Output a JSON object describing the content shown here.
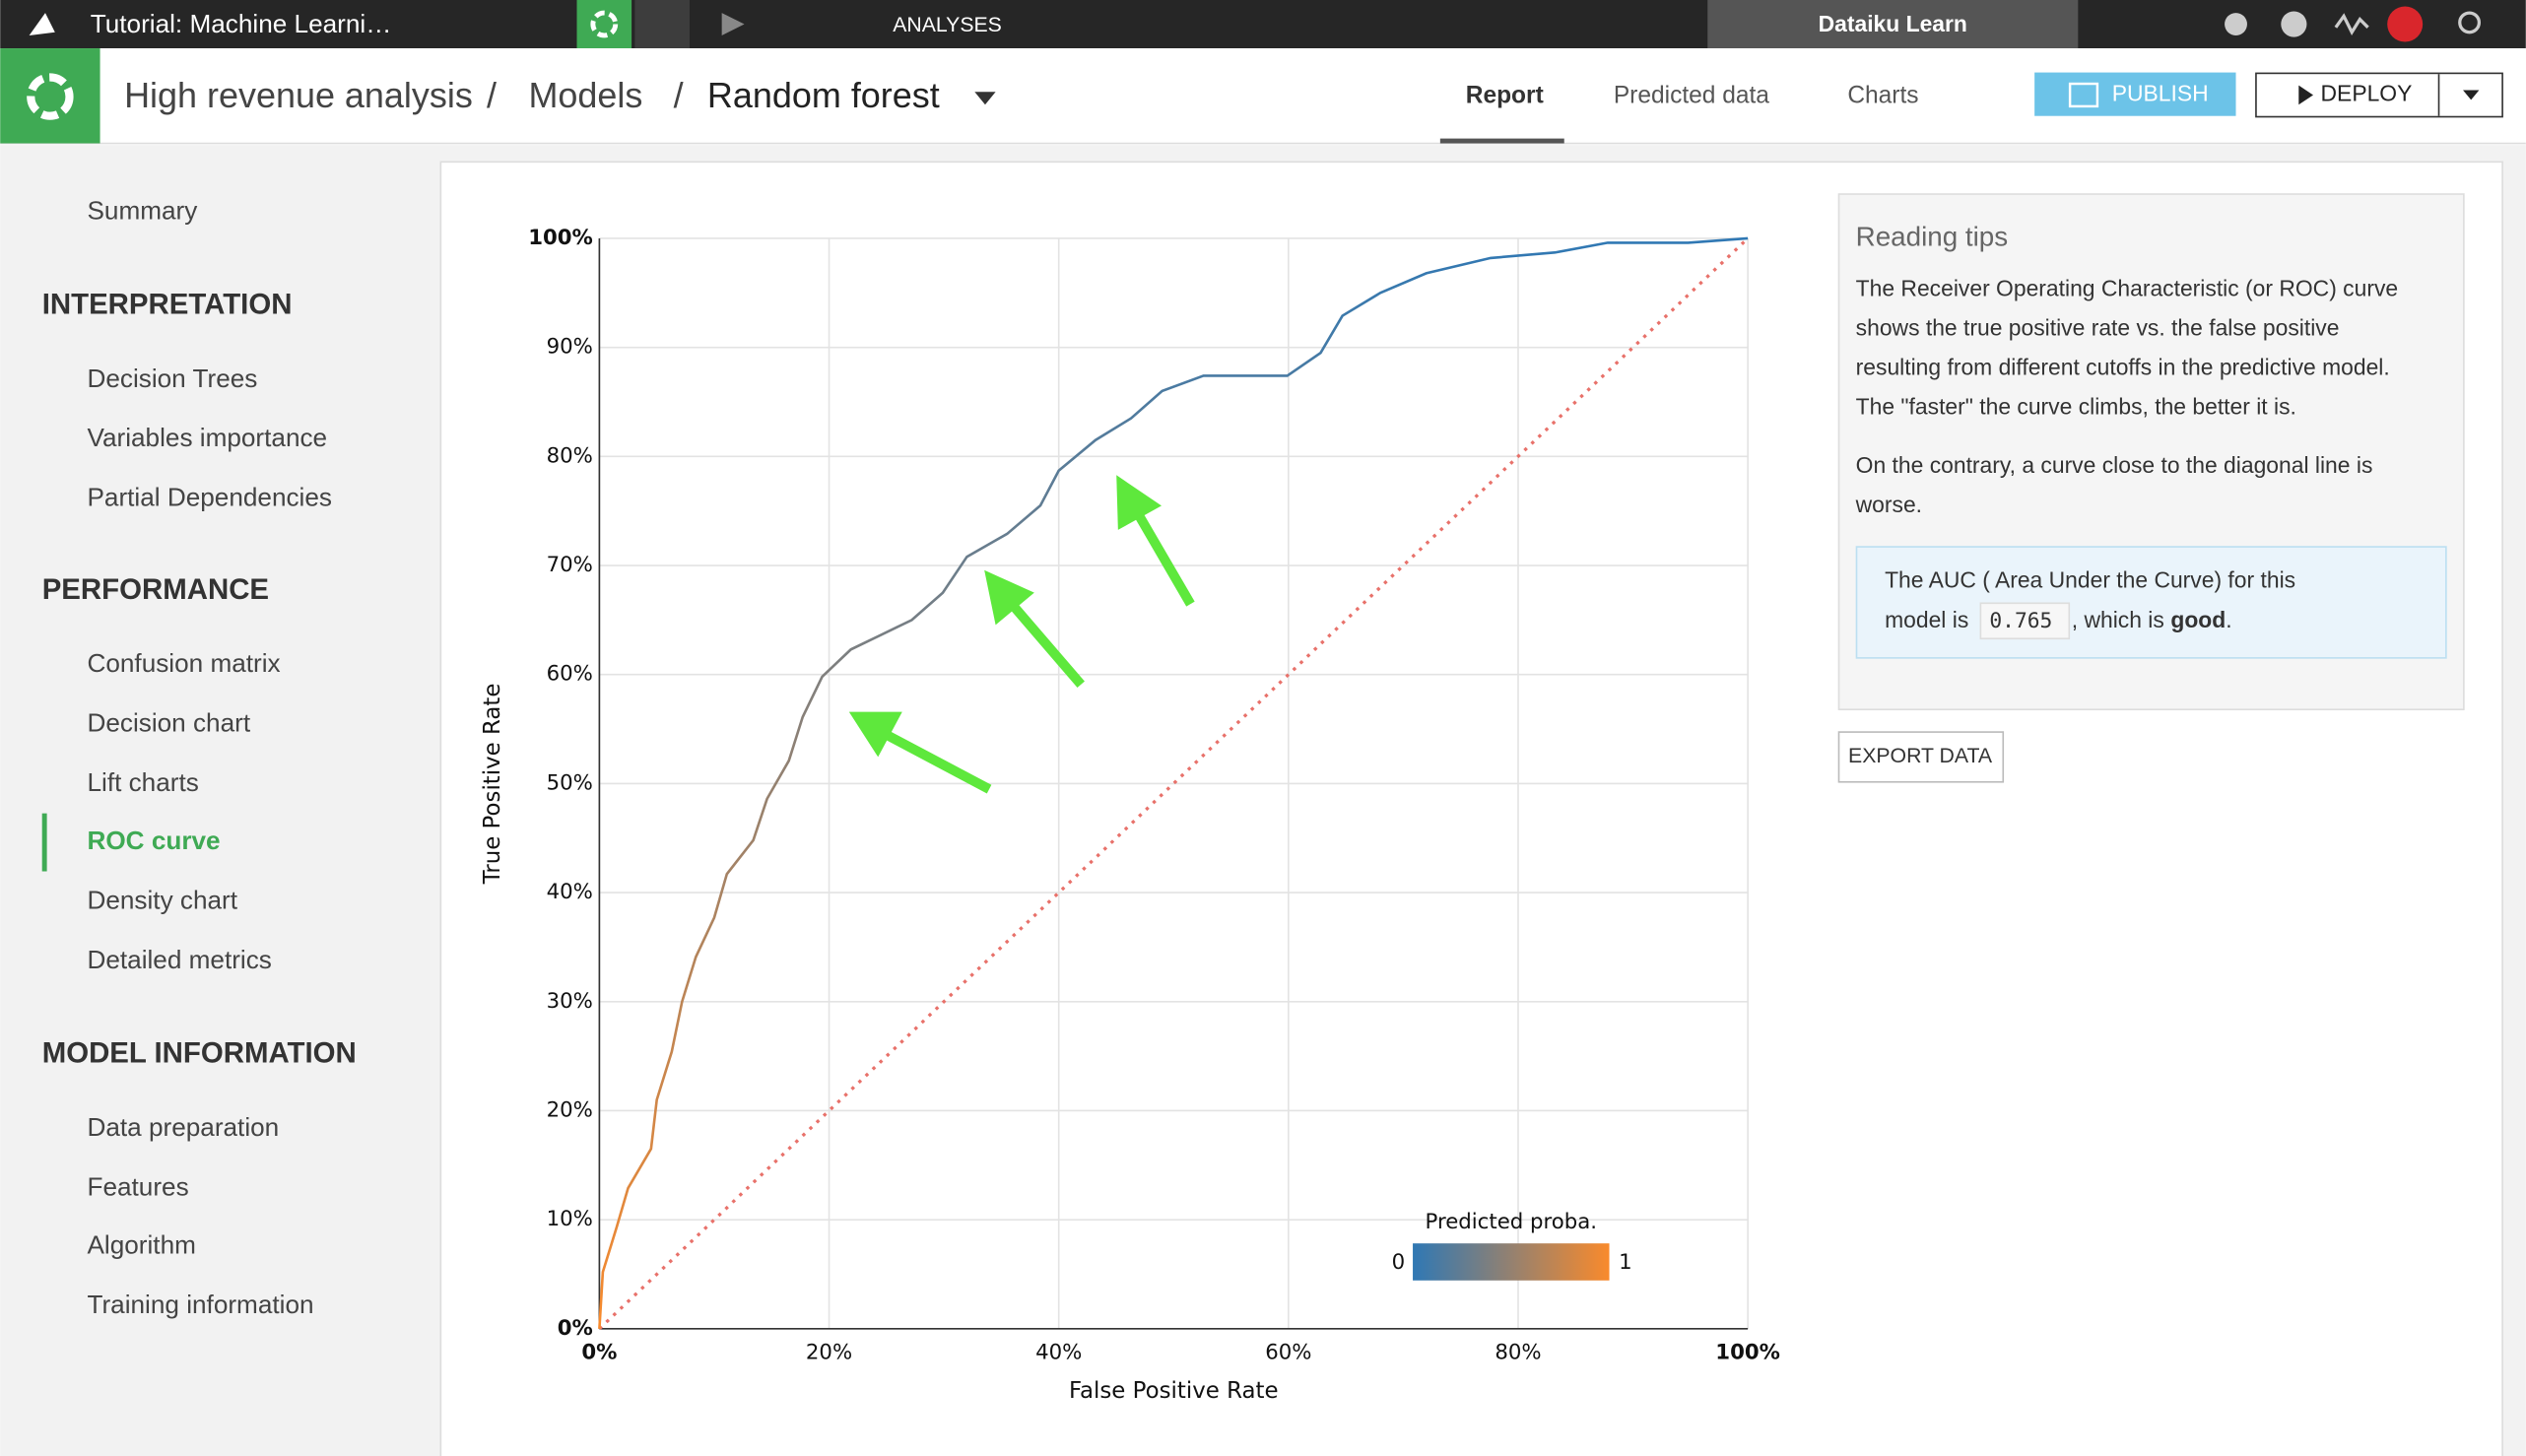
{
  "topbar": {
    "project": "Tutorial: Machine Learni…",
    "section": "ANALYSES",
    "instance": "Dataiku Learn"
  },
  "header": {
    "breadcrumb": [
      "High revenue analysis",
      "Models",
      "Random forest"
    ],
    "separator": "/",
    "tabs": [
      "Report",
      "Predicted data",
      "Charts"
    ],
    "active_tab": "Report",
    "publish": "PUBLISH",
    "deploy": "DEPLOY"
  },
  "sidebar": {
    "summary": "Summary",
    "active": "ROC curve",
    "sections": [
      {
        "title": "INTERPRETATION",
        "items": [
          "Decision Trees",
          "Variables importance",
          "Partial Dependencies"
        ]
      },
      {
        "title": "PERFORMANCE",
        "items": [
          "Confusion matrix",
          "Decision chart",
          "Lift charts",
          "ROC curve",
          "Density chart",
          "Detailed metrics"
        ]
      },
      {
        "title": "MODEL INFORMATION",
        "items": [
          "Data preparation",
          "Features",
          "Algorithm",
          "Training information"
        ]
      }
    ]
  },
  "reading_tips": {
    "title": "Reading tips",
    "lines": [
      "The Receiver Operating Characteristic (or ROC) curve",
      "shows the true positive rate vs. the false positive",
      "resulting from different cutoffs in the predictive model.",
      "The \"faster\" the curve climbs, the better it is."
    ],
    "lines2": [
      "On the contrary, a curve close to the diagonal line is",
      "worse."
    ]
  },
  "auc_box": {
    "line1": "The AUC ( Area Under the Curve) for this",
    "prefix": "model is",
    "auc": 0.765,
    "mid": ", which is",
    "verdict": "good",
    "end": "."
  },
  "export_button": "EXPORT DATA",
  "chart_data": {
    "type": "line",
    "xlabel": "False Positive Rate",
    "ylabel": "True Positive Rate",
    "x": [
      0,
      0.3,
      1.5,
      2.5,
      4.5,
      5,
      6.3,
      7.2,
      8.4,
      10,
      11.1,
      13.4,
      14.6,
      16.5,
      17.7,
      19.4,
      21.9,
      27.2,
      29.9,
      32,
      35.5,
      38.4,
      40,
      43.2,
      46.3,
      49,
      52.6,
      59.9,
      62.8,
      64.7,
      68,
      72,
      77.6,
      83.2,
      87.8,
      94.8,
      100
    ],
    "values": [
      0,
      5.2,
      9.3,
      12.9,
      16.5,
      21,
      25.4,
      30,
      34.1,
      37.7,
      41.7,
      44.8,
      48.6,
      52.1,
      56.1,
      59.8,
      62.3,
      65,
      67.5,
      70.8,
      72.9,
      75.5,
      78.7,
      81.5,
      83.5,
      86,
      87.4,
      87.4,
      89.5,
      92.9,
      95,
      96.8,
      98.2,
      98.7,
      99.6,
      99.6,
      100
    ],
    "xlim": [
      0,
      100
    ],
    "ylim": [
      0,
      100
    ],
    "xticks": [
      {
        "value": 0,
        "label": "0%"
      },
      {
        "value": 20,
        "label": "20%"
      },
      {
        "value": 40,
        "label": "40%"
      },
      {
        "value": 60,
        "label": "60%"
      },
      {
        "value": 80,
        "label": "80%"
      },
      {
        "value": 100,
        "label": "100%"
      }
    ],
    "yticks": [
      {
        "value": 0,
        "label": "0%"
      },
      {
        "value": 10,
        "label": "10%"
      },
      {
        "value": 20,
        "label": "20%"
      },
      {
        "value": 30,
        "label": "30%"
      },
      {
        "value": 40,
        "label": "40%"
      },
      {
        "value": 50,
        "label": "50%"
      },
      {
        "value": 60,
        "label": "60%"
      },
      {
        "value": 70,
        "label": "70%"
      },
      {
        "value": 80,
        "label": "80%"
      },
      {
        "value": 90,
        "label": "90%"
      },
      {
        "value": 100,
        "label": "100%"
      }
    ],
    "grid": true,
    "diagonal_color": "#e8716a",
    "legend": {
      "title": "Predicted proba.",
      "min": 0,
      "max": 1,
      "colors": [
        "#2f78b4",
        "#f98a2c"
      ]
    }
  }
}
